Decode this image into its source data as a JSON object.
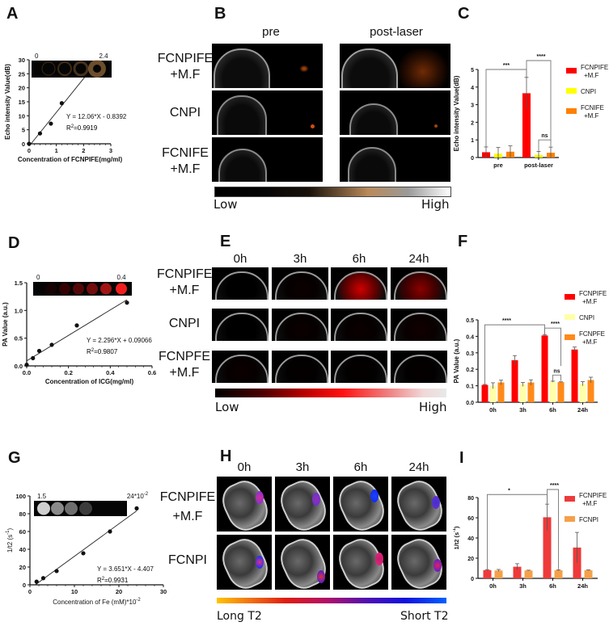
{
  "panels": {
    "A": {
      "letter": "A"
    },
    "B": {
      "letter": "B"
    },
    "C": {
      "letter": "C"
    },
    "D": {
      "letter": "D"
    },
    "E": {
      "letter": "E"
    },
    "F": {
      "letter": "F"
    },
    "G": {
      "letter": "G"
    },
    "H": {
      "letter": "H"
    },
    "I": {
      "letter": "I"
    }
  },
  "B_images": {
    "columns": [
      "pre",
      "post-laser"
    ],
    "rows": [
      {
        "line1": "FCNPIFE",
        "line2": "+M.F"
      },
      {
        "line1": "CNPI",
        "line2": ""
      },
      {
        "line1": "FCNIFE",
        "line2": "+M.F"
      }
    ],
    "colorbar": {
      "low": "Low",
      "high": "High",
      "colors": [
        "#000000",
        "#1a120b",
        "#b98a5a",
        "#9a9a9a",
        "#ffffff"
      ]
    }
  },
  "E_images": {
    "columns": [
      "0h",
      "3h",
      "6h",
      "24h"
    ],
    "rows": [
      {
        "line1": "FCNPIFE",
        "line2": "+M.F"
      },
      {
        "line1": "CNPI",
        "line2": ""
      },
      {
        "line1": "FCNPFE",
        "line2": "+M.F"
      }
    ],
    "colorbar": {
      "low": "Low",
      "high": "High",
      "colors": [
        "#000000",
        "#e00000",
        "#ff0000",
        "#f4b0b0",
        "#e8e8e8"
      ]
    }
  },
  "H_images": {
    "columns": [
      "0h",
      "3h",
      "6h",
      "24h"
    ],
    "rows": [
      {
        "line1": "FCNPIFE",
        "line2": "+M.F"
      },
      {
        "line1": "FCNPI",
        "line2": ""
      }
    ],
    "colorbar": {
      "low": "Long  T2",
      "high": "Short T2",
      "colors": [
        "#ffc400",
        "#e81c10",
        "#b0106a",
        "#4a10b0",
        "#1010e8",
        "#0060ff"
      ]
    }
  },
  "chart_data": [
    {
      "panel": "A",
      "type": "scatter",
      "title": "",
      "xlabel": "Concentration of FCNPIFE(mg/ml)",
      "ylabel": "Echo intensity Value(dB)",
      "xlim": [
        0,
        3
      ],
      "ylim": [
        0,
        30
      ],
      "xticks": [
        0,
        1,
        2,
        3
      ],
      "yticks": [
        0,
        5,
        10,
        15,
        20,
        25,
        30
      ],
      "x": [
        0,
        0.4,
        0.8,
        1.2,
        2.4
      ],
      "y": [
        0,
        3.7,
        7.2,
        14.5,
        28.2
      ],
      "fit": {
        "equation": "Y = 12.06*X - 0.8392",
        "r2_label": "R",
        "r2_value": "=0.9919",
        "slope": 12.06,
        "intercept": -0.8392
      },
      "inset": {
        "left_label": "0",
        "right_label": "2.4"
      }
    },
    {
      "panel": "C",
      "type": "bar",
      "xlabel": "",
      "ylabel": "Echo intensity Value(dB)",
      "ylim": [
        0,
        5
      ],
      "yticks": [
        0,
        1,
        2,
        3,
        4,
        5
      ],
      "categories": [
        "pre",
        "post-laser"
      ],
      "series": [
        {
          "name": "FCNPIFE +M.F",
          "color": "#ff0000",
          "values": [
            0.3,
            3.65
          ],
          "errors": [
            0.3,
            0.9
          ]
        },
        {
          "name": "CNPI",
          "color": "#ffff00",
          "values": [
            0.22,
            0.15
          ],
          "errors": [
            0.35,
            0.2
          ]
        },
        {
          "name": "FCNIFE +M.F",
          "color": "#ff8000",
          "values": [
            0.33,
            0.27
          ],
          "errors": [
            0.33,
            0.32
          ]
        }
      ],
      "legend": [
        {
          "line1": "FCNPIFE",
          "line2": "+M.F"
        },
        {
          "line1": "CNPI",
          "line2": ""
        },
        {
          "line1": "FCNIFE",
          "line2": "+M.F"
        }
      ],
      "annotations": [
        "***",
        "****",
        "ns"
      ]
    },
    {
      "panel": "D",
      "type": "scatter",
      "xlabel": "Concentration of ICG(mg/ml)",
      "ylabel": "PA Value (a.u.)",
      "xlim": [
        0,
        0.6
      ],
      "ylim": [
        0,
        1.5
      ],
      "xticks": [
        "0.0",
        "0.2",
        "0.4",
        "0.6"
      ],
      "yticks": [
        "0.0",
        "0.5",
        "1.0",
        "1.5"
      ],
      "x": [
        0,
        0.03,
        0.06,
        0.12,
        0.24,
        0.48
      ],
      "y": [
        0.02,
        0.14,
        0.27,
        0.38,
        0.73,
        1.14
      ],
      "fit": {
        "equation": "Y = 2.296*X + 0.09066",
        "r2_label": "R",
        "r2_value": "=0.9807",
        "slope": 2.296,
        "intercept": 0.09066
      },
      "inset": {
        "left_label": "0",
        "right_label": "0.4"
      }
    },
    {
      "panel": "F",
      "type": "bar",
      "xlabel": "",
      "ylabel": "PA Value (a.u.)",
      "ylim": [
        0,
        0.5
      ],
      "yticks": [
        "0.0",
        "0.1",
        "0.2",
        "0.3",
        "0.4",
        "0.5"
      ],
      "categories": [
        "0h",
        "3h",
        "6h",
        "24h"
      ],
      "series": [
        {
          "name": "FCNPIFE +M.F",
          "color": "#ff0000",
          "values": [
            0.105,
            0.255,
            0.405,
            0.32
          ],
          "errors": [
            0.003,
            0.028,
            0.004,
            0.015
          ]
        },
        {
          "name": "CNPI",
          "color": "#ffffa8",
          "values": [
            0.1,
            0.108,
            0.125,
            0.112
          ],
          "errors": [
            0.018,
            0.012,
            0.003,
            0.013
          ]
        },
        {
          "name": "FCNPFE +M.F",
          "color": "#ff8a1a",
          "values": [
            0.12,
            0.12,
            0.122,
            0.135
          ],
          "errors": [
            0.014,
            0.016,
            0.002,
            0.017
          ]
        }
      ],
      "legend": [
        {
          "line1": "FCNPIFE",
          "line2": "+M.F"
        },
        {
          "line1": "CNPI",
          "line2": ""
        },
        {
          "line1": "FCNPFE",
          "line2": "+M.F"
        }
      ],
      "annotations": [
        "****",
        "****",
        "ns"
      ]
    },
    {
      "panel": "G",
      "type": "scatter",
      "xlabel": "Concentration of Fe (mM)*10",
      "xlabel_sup": "-2",
      "ylabel": "1/t2 (s",
      "ylabel_sup": "-1",
      "xlim": [
        0,
        30
      ],
      "ylim": [
        0,
        100
      ],
      "xticks": [
        0,
        10,
        20,
        30
      ],
      "yticks": [
        0,
        20,
        40,
        60,
        80,
        100
      ],
      "x": [
        1.5,
        3,
        6,
        12,
        18,
        24
      ],
      "y": [
        3.5,
        7.5,
        15.5,
        35.5,
        60,
        86
      ],
      "fit": {
        "equation": "Y = 3.651*X - 4.407",
        "r2_label": "R",
        "r2_value": "=0.9931",
        "slope": 3.651,
        "intercept": -4.407
      },
      "inset": {
        "left_label": "1.5",
        "right_label": "24*10",
        "right_sup": "-2"
      }
    },
    {
      "panel": "I",
      "type": "bar",
      "xlabel": "",
      "ylabel": "1/t2 (s",
      "ylabel_sup": "-1",
      "ylim": [
        0,
        80
      ],
      "yticks": [
        0,
        20,
        40,
        60,
        80
      ],
      "categories": [
        "0h",
        "3h",
        "6h",
        "24h"
      ],
      "series": [
        {
          "name": "FCNPIFE +M.F",
          "color": "#ee3a3a",
          "values": [
            8.2,
            11.5,
            60.5,
            30.5
          ],
          "errors": [
            0.5,
            3,
            13,
            15
          ]
        },
        {
          "name": "FCNPI",
          "color": "#f5a04a",
          "values": [
            7.8,
            7.8,
            8.0,
            8.0
          ],
          "errors": [
            1,
            0.3,
            0.5,
            0.4
          ]
        }
      ],
      "legend": [
        {
          "line1": "FCNPIFE",
          "line2": "+M.F"
        },
        {
          "line1": "FCNPI",
          "line2": ""
        }
      ],
      "annotations": [
        "*",
        "****"
      ]
    }
  ]
}
